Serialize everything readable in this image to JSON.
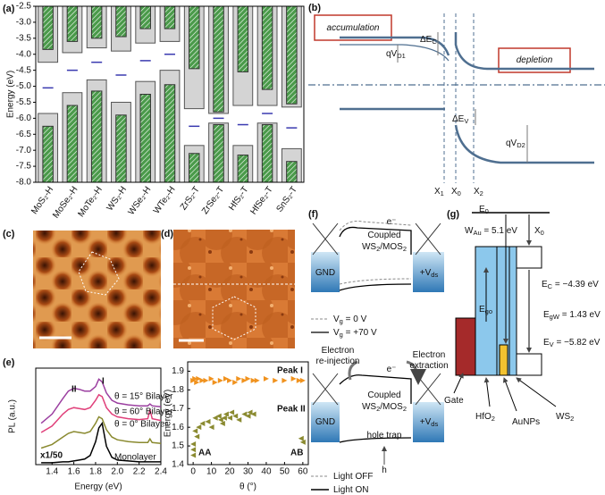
{
  "chart_data": [
    {
      "type": "band-edges",
      "label": "(a)",
      "y_label": "Energy (eV)",
      "categories": [
        "MoS₂-H",
        "MoSe₂-H",
        "MoTe₂-H",
        "WS₂-H",
        "WSe₂-H",
        "WTe₂-H",
        "ZrS₂-T",
        "ZrSe₂-T",
        "HfS₂-T",
        "HfSe₂-T",
        "SnS₂-T"
      ],
      "cb_outer": [
        -4.25,
        -3.95,
        -3.8,
        -3.9,
        -3.65,
        -3.6,
        -5.7,
        -5.85,
        -5.6,
        -5.6,
        -5.65
      ],
      "cb_inner": [
        -3.85,
        -3.6,
        -3.5,
        -3.45,
        -3.2,
        -3.2,
        -4.45,
        -5.8,
        -4.55,
        -5.1,
        -5.55
      ],
      "vb_outer": [
        -5.85,
        -5.2,
        -4.8,
        -5.5,
        -4.85,
        -4.5,
        -6.85,
        -6.15,
        -6.85,
        -6.15,
        -6.95
      ],
      "vb_inner": [
        -6.25,
        -5.6,
        -5.15,
        -5.9,
        -5.25,
        -4.95,
        -7.1,
        -6.2,
        -7.15,
        -6.2,
        -7.35
      ],
      "midgap": [
        -5.05,
        -4.5,
        -4.25,
        -4.65,
        -4.2,
        -4.0,
        -6.25,
        -6.0,
        -6.2,
        -5.85,
        -6.3
      ],
      "outer_color": "#d4d4d4",
      "inner_color": "#4a9a4a",
      "midgap_color": "#3a3ab0",
      "ylim": [
        -8,
        -2.5
      ],
      "yticks": [
        {
          "value": -8,
          "label": "-8.0"
        },
        -7.5,
        {
          "value": -7,
          "label": "-7.0"
        },
        -6.5,
        {
          "value": -6,
          "label": "-6.0"
        },
        -5.5,
        {
          "value": -5,
          "label": "-5.0"
        },
        -4.5,
        {
          "value": -4,
          "label": "-4.0"
        },
        -3.5,
        {
          "value": -3,
          "label": "-3.0"
        },
        -2.5
      ]
    },
    {
      "type": "line",
      "label": "(e)",
      "x_label": "Energy (eV)",
      "y_label": "PL (a.u.)",
      "x": [
        1.3,
        1.4,
        1.5,
        1.55,
        1.6,
        1.65,
        1.7,
        1.75,
        1.8,
        1.83,
        1.86,
        1.9,
        1.95,
        2.0,
        2.1,
        2.2,
        2.28,
        2.3,
        2.32,
        2.4
      ],
      "series": [
        {
          "name": "θ = 15° Bilayer",
          "color": "#9b3fa0",
          "values": [
            0.45,
            0.55,
            0.72,
            0.8,
            0.83,
            0.82,
            0.8,
            0.8,
            0.85,
            0.93,
            0.9,
            0.78,
            0.7,
            0.67,
            0.65,
            0.64,
            0.64,
            0.66,
            0.64,
            0.63
          ]
        },
        {
          "name": "θ = 60° Bilayer",
          "color": "#e0407a",
          "values": [
            0.35,
            0.42,
            0.55,
            0.6,
            0.62,
            0.61,
            0.6,
            0.62,
            0.7,
            0.76,
            0.74,
            0.62,
            0.55,
            0.52,
            0.5,
            0.49,
            0.5,
            0.6,
            0.5,
            0.48
          ]
        },
        {
          "name": "θ = 0° Bilayer",
          "color": "#8a8a30",
          "values": [
            0.18,
            0.22,
            0.3,
            0.34,
            0.36,
            0.35,
            0.34,
            0.36,
            0.45,
            0.52,
            0.5,
            0.38,
            0.3,
            0.27,
            0.25,
            0.24,
            0.24,
            0.28,
            0.24,
            0.23
          ]
        },
        {
          "name": "Monolayer",
          "color": "#000000",
          "values": [
            0.02,
            0.02,
            0.03,
            0.03,
            0.04,
            0.05,
            0.06,
            0.1,
            0.25,
            0.4,
            0.45,
            0.2,
            0.08,
            0.05,
            0.04,
            0.03,
            0.03,
            0.03,
            0.03,
            0.03
          ]
        }
      ],
      "annotations": [
        "II",
        "I",
        "x1/50"
      ],
      "xlim": [
        1.25,
        2.4
      ],
      "ylim": [
        0,
        1.05
      ],
      "xticks": [
        1.4,
        1.6,
        1.8,
        {
          "value": 2,
          "label": "2.0"
        },
        2.2,
        2.4
      ]
    },
    {
      "type": "scatter",
      "x_label": "θ (°)",
      "y_label": "Energy (eV)",
      "series": [
        {
          "name": "Peak I",
          "color": "#f0921e",
          "x": [
            0,
            1,
            2,
            3,
            5,
            7,
            10,
            12,
            15,
            18,
            20,
            23,
            25,
            28,
            30,
            33,
            35,
            40,
            45,
            50,
            55,
            58,
            60
          ],
          "values": [
            1.85,
            1.86,
            1.84,
            1.86,
            1.85,
            1.85,
            1.86,
            1.84,
            1.85,
            1.86,
            1.85,
            1.84,
            1.86,
            1.85,
            1.86,
            1.85,
            1.85,
            1.86,
            1.85,
            1.85,
            1.86,
            1.85,
            1.85
          ]
        },
        {
          "name": "Peak II",
          "color": "#8a8a30",
          "x": [
            0,
            0,
            0,
            1,
            2,
            3,
            5,
            8,
            10,
            12,
            14,
            15,
            16,
            17,
            18,
            20,
            21,
            23,
            25,
            28,
            30,
            31,
            33,
            59,
            60
          ],
          "values": [
            1.45,
            1.48,
            1.51,
            1.58,
            1.55,
            1.6,
            1.62,
            1.63,
            1.6,
            1.65,
            1.66,
            1.64,
            1.62,
            1.65,
            1.67,
            1.65,
            1.68,
            1.66,
            1.64,
            1.67,
            1.66,
            1.68,
            1.67,
            1.54,
            1.52
          ]
        }
      ],
      "annotations": [
        "AA",
        "AB"
      ],
      "xlim": [
        -3,
        63
      ],
      "ylim": [
        1.4,
        1.95
      ],
      "xticks": [
        0,
        10,
        20,
        30,
        40,
        50,
        60
      ],
      "yticks": [
        1.4,
        1.5,
        1.6,
        1.7,
        1.8,
        1.9
      ]
    }
  ],
  "b": {
    "label": "(b)",
    "texts": [
      [
        "accumulation"
      ],
      [
        "depletion"
      ],
      [
        "ΔE",
        "C"
      ],
      [
        "qV",
        "D1"
      ],
      [
        "ΔE",
        "V"
      ],
      [
        "qV",
        "D2"
      ],
      [
        "X",
        "1"
      ],
      [
        "X",
        "0"
      ],
      [
        "X",
        "2"
      ]
    ]
  },
  "c": {
    "label": "(c)"
  },
  "d": {
    "label": "(d)"
  },
  "f": {
    "label": "(f)",
    "texts": [
      [
        "GND"
      ],
      [
        "Coupled"
      ],
      [
        "WS",
        "2",
        "/MOS",
        "2"
      ],
      [
        "+V",
        "ds"
      ],
      [
        "e⁻"
      ],
      [
        "V",
        "g",
        " = 0 V"
      ],
      [
        "V",
        "g",
        " = +70 V"
      ],
      [
        "Electron"
      ],
      [
        "re-injection"
      ],
      [
        "Electron"
      ],
      [
        "extraction"
      ],
      [
        "e⁻"
      ],
      [
        "GND"
      ],
      [
        "Coupled"
      ],
      [
        "WS",
        "2",
        "/MOS",
        "2"
      ],
      [
        "hole trap"
      ],
      [
        "+V",
        "ds"
      ],
      [
        "h"
      ],
      [
        "Light OFF"
      ],
      [
        "Light ON"
      ]
    ]
  },
  "g": {
    "label": "(g)",
    "texts": [
      [
        "E",
        "0"
      ],
      [
        "W",
        "Au",
        " = 5.1 eV"
      ],
      [
        "X",
        "0"
      ],
      [
        "E",
        "C",
        " = −4.39 eV"
      ],
      [
        "E",
        "go"
      ],
      [
        "E",
        "gW",
        " = 1.43 eV"
      ],
      [
        "E",
        "V",
        " = −5.82 eV"
      ],
      [
        "Gate"
      ],
      [
        "HfO",
        "2"
      ],
      [
        "AuNPs"
      ],
      [
        "WS",
        "2"
      ]
    ]
  }
}
